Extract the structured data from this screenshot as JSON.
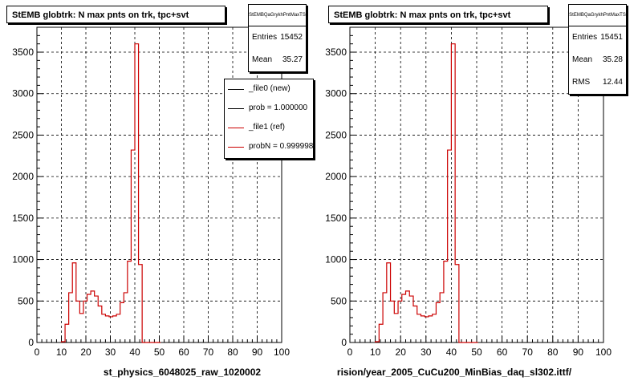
{
  "chart_data": [
    {
      "type": "bar",
      "title": "StEMB globtrk: N max pnts on trk, tpc+svt",
      "xlabel": "st_physics_6048025_raw_1020002",
      "ylabel": "",
      "xlim": [
        0,
        100
      ],
      "ylim": [
        0,
        3800
      ],
      "xticks": [
        0,
        10,
        20,
        30,
        40,
        50,
        60,
        70,
        80,
        90,
        100
      ],
      "yticks": [
        0,
        500,
        1000,
        1500,
        2000,
        2500,
        3000,
        3500
      ],
      "grid": true,
      "stats": {
        "name": "StEMBQaGrykhPntMaxTS",
        "rows": [
          {
            "key": "Entries",
            "value": "15452"
          },
          {
            "key": "Mean",
            "value": "35.27"
          }
        ]
      },
      "legend": {
        "entries": [
          {
            "label": "_file0 (new)",
            "color": "#000000"
          },
          {
            "label": "prob = 1.000000",
            "color": "#000000"
          },
          {
            "label": "_file1 (ref)",
            "color": "#cc0000"
          },
          {
            "label": "probN = 0.999998",
            "color": "#cc0000"
          }
        ]
      },
      "series": [
        {
          "bin_width": 1.5,
          "x": [
            10,
            11.5,
            13,
            14.5,
            16,
            17.5,
            19,
            20.5,
            22,
            23.5,
            25,
            26.5,
            28,
            29.5,
            31,
            32.5,
            34,
            35.5,
            37,
            38.5,
            40,
            41.5,
            43,
            44.5,
            46,
            47.5,
            49
          ],
          "values": [
            10,
            220,
            600,
            960,
            500,
            350,
            500,
            580,
            620,
            560,
            440,
            340,
            320,
            310,
            320,
            340,
            480,
            600,
            980,
            2320,
            3600,
            940,
            0,
            0,
            0,
            0,
            0
          ],
          "color": "#cc0000"
        }
      ]
    },
    {
      "type": "bar",
      "title": "StEMB globtrk: N max pnts on trk, tpc+svt",
      "xlabel": "rision/year_2005_CuCu200_MinBias_daq_sl302.ittf/",
      "ylabel": "",
      "xlim": [
        0,
        100
      ],
      "ylim": [
        0,
        3800
      ],
      "xticks": [
        0,
        10,
        20,
        30,
        40,
        50,
        60,
        70,
        80,
        90,
        100
      ],
      "yticks": [
        0,
        500,
        1000,
        1500,
        2000,
        2500,
        3000,
        3500
      ],
      "grid": true,
      "stats": {
        "name": "StEMBQaGrykhPntMaxTS",
        "rows": [
          {
            "key": "Entries",
            "value": "15451"
          },
          {
            "key": "Mean",
            "value": "35.28"
          },
          {
            "key": "RMS",
            "value": "12.44"
          }
        ]
      },
      "series": [
        {
          "bin_width": 1.5,
          "x": [
            10,
            11.5,
            13,
            14.5,
            16,
            17.5,
            19,
            20.5,
            22,
            23.5,
            25,
            26.5,
            28,
            29.5,
            31,
            32.5,
            34,
            35.5,
            37,
            38.5,
            40,
            41.5,
            43,
            44.5,
            46,
            47.5,
            49
          ],
          "values": [
            10,
            220,
            600,
            960,
            500,
            350,
            500,
            580,
            620,
            560,
            440,
            340,
            320,
            310,
            320,
            340,
            480,
            600,
            980,
            2320,
            3600,
            940,
            0,
            0,
            0,
            0,
            0
          ],
          "color": "#cc0000"
        }
      ]
    }
  ]
}
